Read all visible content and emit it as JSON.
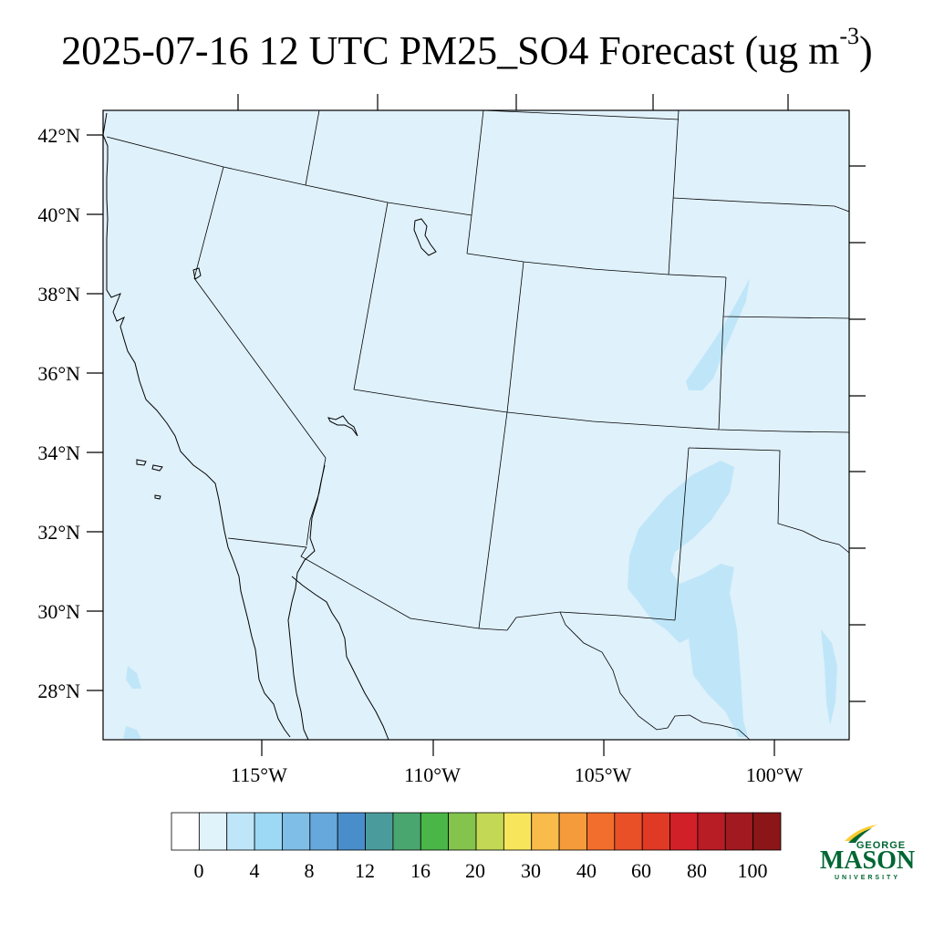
{
  "title": {
    "prefix": "2025-07-16 12 UTC PM25_SO4 Forecast (ug m",
    "exponent": "-3",
    "suffix": ")"
  },
  "map": {
    "background_color": "#dff1fb",
    "lat_labels": [
      "42°N",
      "40°N",
      "38°N",
      "36°N",
      "34°N",
      "32°N",
      "30°N",
      "28°N"
    ],
    "lon_labels": [
      "115°W",
      "110°W",
      "105°W",
      "100°W"
    ]
  },
  "colorbar": {
    "colors": [
      "#ffffff",
      "#e0f3fb",
      "#bfe6f8",
      "#9dd8f4",
      "#7fbfe7",
      "#66a8dc",
      "#4a8dcb",
      "#4a9c9c",
      "#4aa66f",
      "#4ab648",
      "#84c44d",
      "#c3d955",
      "#f7e65c",
      "#f9bb49",
      "#f59b3b",
      "#f26e2c",
      "#ea5028",
      "#e03a27",
      "#d22028",
      "#b81c24",
      "#a01a20",
      "#8a1618"
    ],
    "tick_labels": [
      "0",
      "4",
      "8",
      "12",
      "16",
      "20",
      "30",
      "40",
      "60",
      "80",
      "100"
    ]
  },
  "logo": {
    "line1": "GEORGE",
    "line2": "MASON",
    "line3": "UNIVERSITY",
    "green": "#006633",
    "gold": "#ffcc33"
  }
}
